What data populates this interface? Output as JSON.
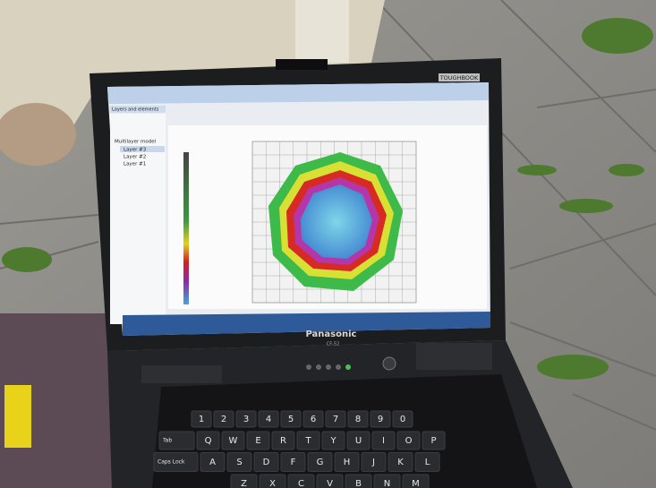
{
  "lid": {
    "brand": "TOUGHBOOK"
  },
  "screen": {
    "panel_title": "Layers and elements",
    "tree": [
      "Multilayer model",
      "Layer #3",
      "Layer #2",
      "Layer #1"
    ]
  },
  "base": {
    "brand": "Panasonic",
    "model": "CF-52"
  },
  "keyboard": {
    "rows": [
      [
        "1",
        "2",
        "3",
        "4",
        "5",
        "6",
        "7",
        "8",
        "9",
        "0"
      ],
      [
        "Tab",
        "Q",
        "W",
        "E",
        "R",
        "T",
        "Y",
        "U",
        "I",
        "O",
        "P"
      ],
      [
        "Caps Lock",
        "A",
        "S",
        "D",
        "F",
        "G",
        "H",
        "J",
        "K",
        "L"
      ],
      [
        "Z",
        "X",
        "C",
        "V",
        "B",
        "N",
        "M"
      ]
    ]
  }
}
